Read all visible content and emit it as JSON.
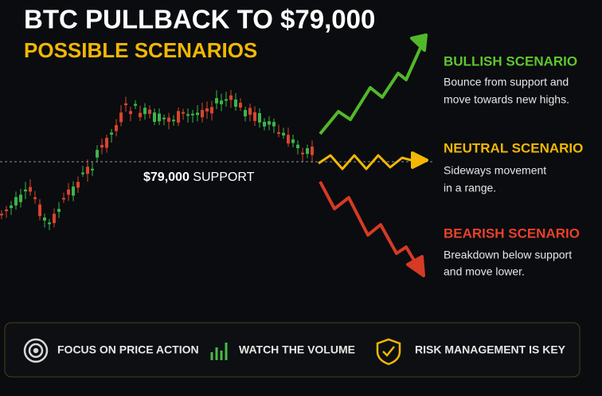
{
  "header": {
    "title": "BTC PULLBACK TO $79,000",
    "subtitle": "POSSIBLE SCENARIOS"
  },
  "support": {
    "price": "$79,000",
    "label": "SUPPORT"
  },
  "scenarios": [
    {
      "title": "BULLISH SCENARIO",
      "lines": [
        "Bounce from support and",
        "move towards new highs."
      ]
    },
    {
      "title": "NEUTRAL SCENARIO",
      "lines": [
        "Sideways movement",
        "in a range."
      ]
    },
    {
      "title": "BEARISH SCENARIO",
      "lines": [
        "Breakdown below support",
        "and move lower."
      ]
    }
  ],
  "footer": [
    "FOCUS ON PRICE ACTION",
    "WATCH THE VOLUME",
    "RISK MANAGEMENT IS KEY"
  ]
}
